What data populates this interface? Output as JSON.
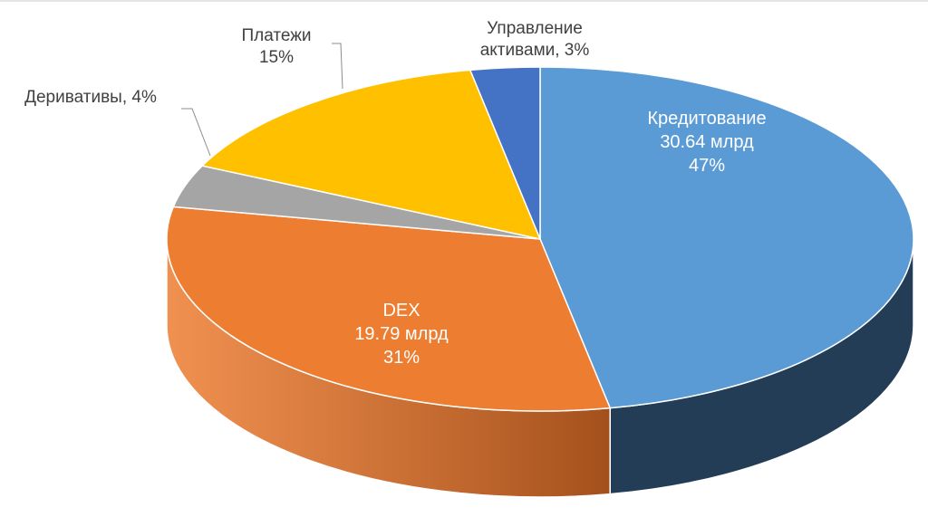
{
  "chart_data": {
    "type": "pie",
    "style": "3d",
    "title": "",
    "slices": [
      {
        "name": "Кредитование",
        "value_label": "30.64 млрд",
        "percent": 47,
        "pct_label": "47%",
        "color": "#5b9bd5",
        "side_color": "#233d57"
      },
      {
        "name": "DEX",
        "value_label": "19.79 млрд",
        "percent": 31,
        "pct_label": "31%",
        "color": "#ed7d31",
        "side_color": "#a4501c"
      },
      {
        "name": "Деривативы",
        "percent": 4,
        "pct_label": "Деривативы, 4%",
        "color": "#a5a5a5",
        "side_color": "#6e6e6e"
      },
      {
        "name": "Платежи",
        "percent": 15,
        "pct_label": "15%",
        "color": "#ffc000",
        "side_color": "#b08400"
      },
      {
        "name": "Управление активами",
        "line1": "Управление",
        "line2": "активами, 3%",
        "percent": 3,
        "color": "#4472c4",
        "side_color": "#2b4a80"
      }
    ]
  }
}
